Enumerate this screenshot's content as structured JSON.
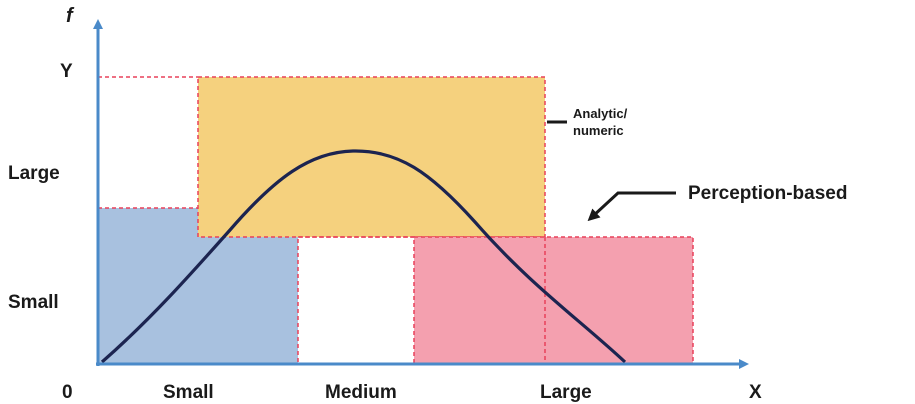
{
  "axes": {
    "y_name": "f",
    "x_name": "X",
    "origin": "0",
    "y_top": "Y",
    "y_ticks": [
      "Large",
      "Small"
    ],
    "x_ticks": [
      "Small",
      "Medium",
      "Large"
    ]
  },
  "annotations": {
    "analytic_line1": "Analytic/",
    "analytic_line2": "numeric",
    "perception": "Perception-based"
  },
  "colors": {
    "axis": "#4a8ac9",
    "curve": "#1c2450",
    "small_region": "#a8c1df",
    "analytic_region": "#f5d17e",
    "large_region": "#f4a0af",
    "dashed_border": "#e8405a",
    "pointer": "#1a1a1a"
  }
}
